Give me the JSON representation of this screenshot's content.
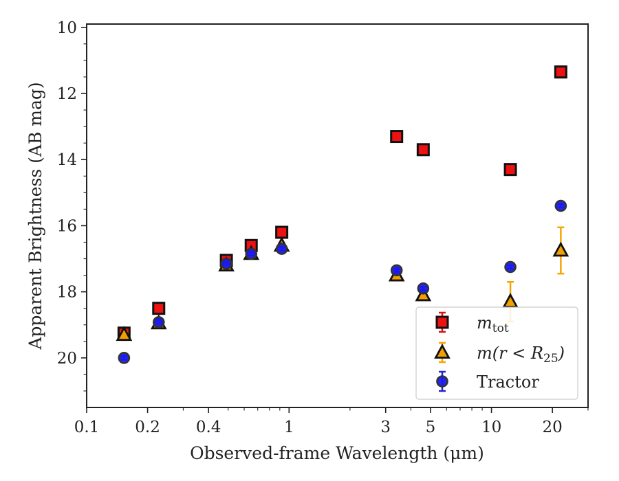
{
  "chart_data": {
    "type": "scatter",
    "xlabel": "Observed-frame Wavelength (μm)",
    "ylabel": "Apparent Brightness (AB mag)",
    "x_scale": "log",
    "xlim": [
      0.1,
      30
    ],
    "ylim": [
      21.5,
      9.9
    ],
    "y_inverted": true,
    "grid": false,
    "legend_position": "lower-right",
    "x_ticks": [
      {
        "value": 0.1,
        "label": "0.1"
      },
      {
        "value": 0.2,
        "label": "0.2"
      },
      {
        "value": 0.4,
        "label": "0.4"
      },
      {
        "value": 1,
        "label": "1"
      },
      {
        "value": 3,
        "label": "3"
      },
      {
        "value": 5,
        "label": "5"
      },
      {
        "value": 10,
        "label": "10"
      },
      {
        "value": 20,
        "label": "20"
      }
    ],
    "y_ticks": [
      {
        "value": 10,
        "label": "10"
      },
      {
        "value": 12,
        "label": "12"
      },
      {
        "value": 14,
        "label": "14"
      },
      {
        "value": 16,
        "label": "16"
      },
      {
        "value": 18,
        "label": "18"
      },
      {
        "value": 20,
        "label": "20"
      }
    ],
    "series": [
      {
        "name": "m_tot",
        "legend_main": "m",
        "legend_sub": "tot",
        "marker": "square",
        "fill": "#ee1111",
        "edge": "#111111",
        "errcolor": "#dd1111",
        "points": [
          {
            "x": 0.153,
            "y": 19.25,
            "err": 0.1
          },
          {
            "x": 0.227,
            "y": 18.5,
            "err": 0.05
          },
          {
            "x": 0.49,
            "y": 17.05,
            "err": 0.05
          },
          {
            "x": 0.65,
            "y": 16.6,
            "err": 0.05
          },
          {
            "x": 0.92,
            "y": 16.2,
            "err": 0.05
          },
          {
            "x": 3.4,
            "y": 13.3,
            "err": 0.05
          },
          {
            "x": 4.6,
            "y": 13.7,
            "err": 0.05
          },
          {
            "x": 12.4,
            "y": 14.3,
            "err": 0.05
          },
          {
            "x": 22.0,
            "y": 11.35,
            "err": 0.05
          }
        ]
      },
      {
        "name": "m(r < R25)",
        "legend_main": "m(r < R",
        "legend_sub": "25",
        "legend_end": ")",
        "marker": "triangle",
        "fill": "#f0a000",
        "edge": "#111111",
        "errcolor": "#f5a500",
        "points": [
          {
            "x": 0.153,
            "y": 19.3,
            "err": 0.08
          },
          {
            "x": 0.227,
            "y": 18.95,
            "err": 0.05
          },
          {
            "x": 0.49,
            "y": 17.2,
            "err": 0.05
          },
          {
            "x": 0.65,
            "y": 16.85,
            "err": 0.05
          },
          {
            "x": 0.92,
            "y": 16.6,
            "err": 0.05
          },
          {
            "x": 3.4,
            "y": 17.5,
            "err": 0.08
          },
          {
            "x": 4.6,
            "y": 18.1,
            "err": 0.1
          },
          {
            "x": 12.4,
            "y": 18.3,
            "err": 0.6
          },
          {
            "x": 22.0,
            "y": 16.75,
            "err": 0.7
          }
        ]
      },
      {
        "name": "Tractor",
        "legend_main": "Tractor",
        "marker": "circle",
        "fill": "#1a1aee",
        "edge": "#333333",
        "errcolor": "#2222dd",
        "points": [
          {
            "x": 0.153,
            "y": 20.0,
            "err": 0.05
          },
          {
            "x": 0.227,
            "y": 18.92,
            "err": 0.05
          },
          {
            "x": 0.49,
            "y": 17.15,
            "err": 0.05
          },
          {
            "x": 0.65,
            "y": 16.85,
            "err": 0.05
          },
          {
            "x": 0.92,
            "y": 16.7,
            "err": 0.05
          },
          {
            "x": 3.4,
            "y": 17.35,
            "err": 0.05
          },
          {
            "x": 4.6,
            "y": 17.9,
            "err": 0.05
          },
          {
            "x": 12.4,
            "y": 17.25,
            "err": 0.05
          },
          {
            "x": 22.0,
            "y": 15.4,
            "err": 0.05
          }
        ]
      }
    ]
  }
}
